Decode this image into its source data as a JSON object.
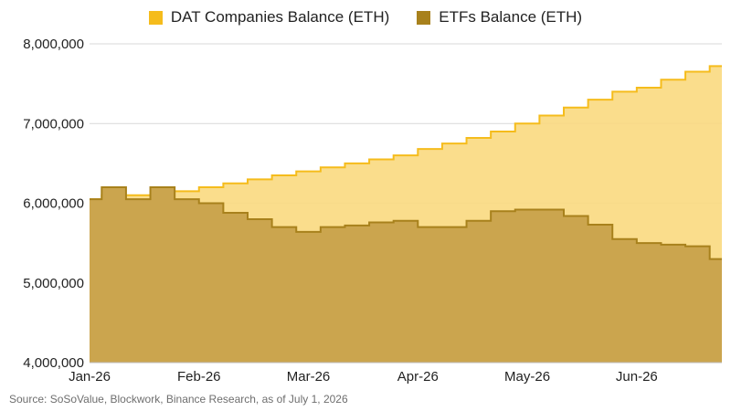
{
  "chart_data": {
    "type": "area",
    "x_ticks": [
      "Jan-26",
      "Feb-26",
      "Mar-26",
      "Apr-26",
      "May-26",
      "Jun-26"
    ],
    "ylim": [
      4000000,
      8000000
    ],
    "y_ticks": [
      4000000,
      5000000,
      6000000,
      7000000,
      8000000
    ],
    "y_tick_labels": [
      "4,000,000",
      "5,000,000",
      "6,000,000",
      "7,000,000",
      "8,000,000"
    ],
    "grid": "horizontal",
    "legend_position": "top-center",
    "source": "Source: SoSoValue, Blockwork, Binance Research, as of July 1, 2026",
    "series": [
      {
        "name": "DAT Companies Balance (ETH)",
        "color": "#F5BC1C",
        "fill": "#FAD97F",
        "x": [
          0,
          1,
          2,
          3,
          4,
          5,
          6,
          7,
          8,
          9,
          10,
          11,
          12,
          13,
          14,
          15,
          16,
          17,
          18,
          19,
          20,
          21,
          22,
          23,
          24,
          25,
          26
        ],
        "values": [
          6050000,
          6100000,
          6100000,
          6150000,
          6150000,
          6200000,
          6250000,
          6300000,
          6350000,
          6400000,
          6450000,
          6500000,
          6550000,
          6600000,
          6680000,
          6750000,
          6820000,
          6900000,
          7000000,
          7100000,
          7200000,
          7300000,
          7400000,
          7450000,
          7550000,
          7650000,
          7720000
        ]
      },
      {
        "name": "ETFs Balance (ETH)",
        "color": "#A8811C",
        "fill": "#CBA54E",
        "x": [
          0,
          1,
          2,
          3,
          4,
          5,
          6,
          7,
          8,
          9,
          10,
          11,
          12,
          13,
          14,
          15,
          16,
          17,
          18,
          19,
          20,
          21,
          22,
          23,
          24,
          25,
          26
        ],
        "values": [
          6050000,
          6200000,
          6050000,
          6200000,
          6050000,
          6000000,
          5880000,
          5800000,
          5700000,
          5640000,
          5700000,
          5720000,
          5760000,
          5780000,
          5700000,
          5700000,
          5780000,
          5900000,
          5920000,
          5920000,
          5840000,
          5730000,
          5550000,
          5500000,
          5480000,
          5460000,
          5300000
        ]
      }
    ],
    "x_range": [
      0,
      26
    ],
    "x_tick_positions": [
      0,
      4.5,
      9,
      13.5,
      18,
      22.5
    ]
  }
}
